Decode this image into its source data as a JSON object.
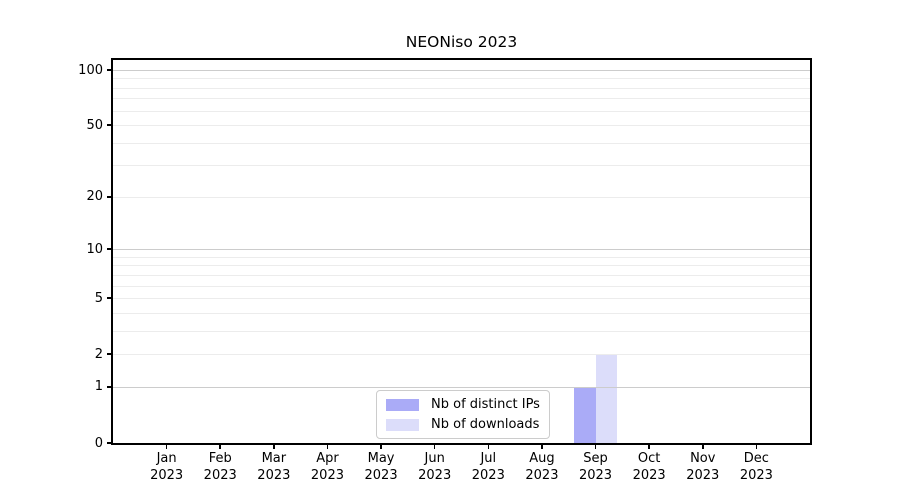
{
  "chart_data": {
    "type": "bar",
    "title": "NEONiso 2023",
    "scale": "log1p",
    "xlabel": "",
    "ylabel": "",
    "ylim": [
      0,
      113
    ],
    "grid": true,
    "legend_position": "lower center",
    "categories": [
      "Jan",
      "Feb",
      "Mar",
      "Apr",
      "May",
      "Jun",
      "Jul",
      "Aug",
      "Sep",
      "Oct",
      "Nov",
      "Dec"
    ],
    "x_tick_year": "2023",
    "y_tick_values": [
      0,
      1,
      2,
      5,
      10,
      20,
      50,
      100
    ],
    "y_tick_labels": [
      "0",
      "1",
      "2",
      "5",
      "10",
      "20",
      "50",
      "100"
    ],
    "y_major_grid_values": [
      1,
      10,
      100
    ],
    "y_minor_grid_values": [
      2,
      3,
      4,
      5,
      6,
      7,
      8,
      9,
      20,
      30,
      40,
      50,
      60,
      70,
      80,
      90
    ],
    "series": [
      {
        "name": "Nb of distinct IPs",
        "color": "#aaabf7",
        "values": [
          0,
          0,
          0,
          0,
          0,
          0,
          0,
          0,
          1,
          0,
          0,
          0
        ]
      },
      {
        "name": "Nb of downloads",
        "color": "#dcddfa",
        "values": [
          0,
          0,
          0,
          0,
          0,
          0,
          0,
          0,
          2,
          0,
          0,
          0
        ]
      }
    ]
  },
  "colors": {
    "major_grid": "#cccccc",
    "minor_grid": "#ececec",
    "axis": "#000000",
    "background": "#ffffff"
  }
}
